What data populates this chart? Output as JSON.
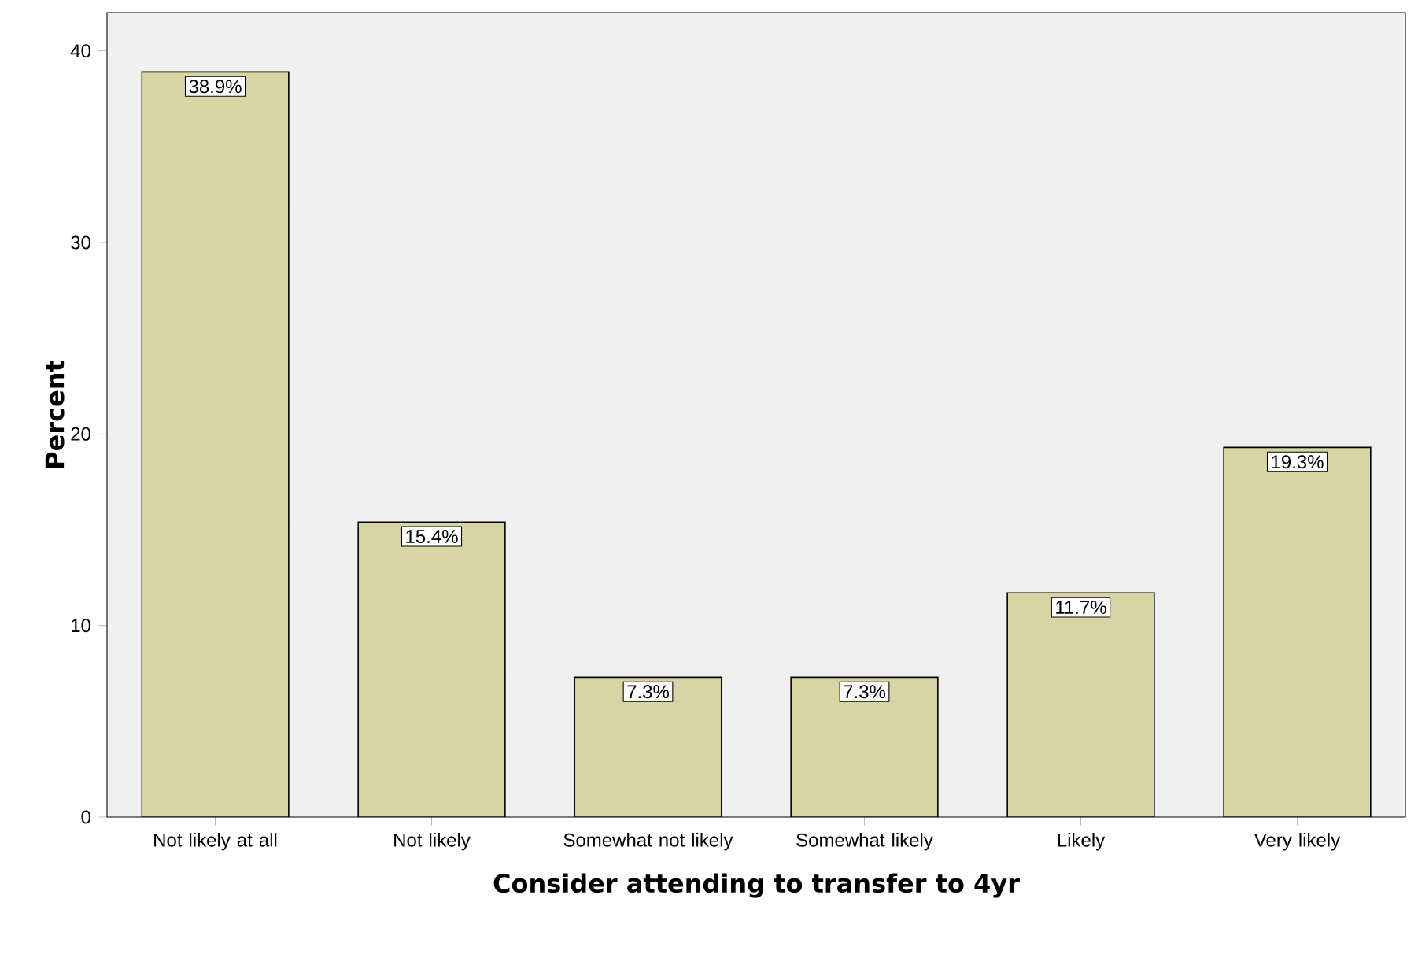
{
  "chart_data": {
    "type": "bar",
    "xlabel": "Consider attending to transfer to 4yr",
    "ylabel": "Percent",
    "categories": [
      "Not likely at all",
      "Not likely",
      "Somewhat not likely",
      "Somewhat likely",
      "Likely",
      "Very likely"
    ],
    "values": [
      38.9,
      15.4,
      7.3,
      7.3,
      11.7,
      19.3
    ],
    "value_labels": [
      "38.9%",
      "15.4%",
      "7.3%",
      "7.3%",
      "11.7%",
      "19.3%"
    ],
    "color": "#d9d4a4",
    "ylim": [
      0,
      42
    ],
    "yticks": [
      0,
      10,
      20,
      30,
      40
    ],
    "grid": false
  }
}
